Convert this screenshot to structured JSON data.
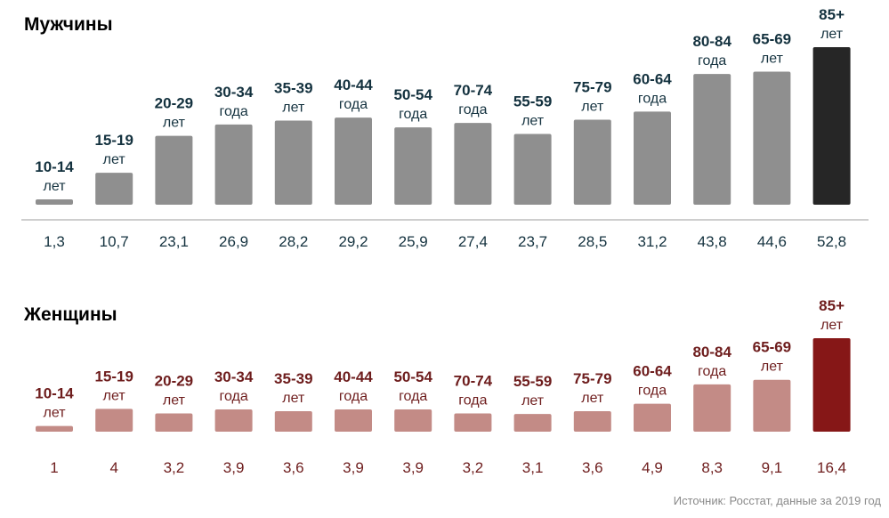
{
  "chart_data": [
    {
      "type": "bar",
      "title": "Мужчины",
      "categories": [
        "10-14",
        "15-19",
        "20-29",
        "30-34",
        "35-39",
        "40-44",
        "50-54",
        "70-74",
        "55-59",
        "75-79",
        "60-64",
        "80-84",
        "65-69",
        "85+"
      ],
      "category_units": [
        "лет",
        "лет",
        "лет",
        "года",
        "лет",
        "года",
        "года",
        "года",
        "лет",
        "лет",
        "года",
        "года",
        "лет",
        "лет"
      ],
      "values": [
        1.3,
        10.7,
        23.1,
        26.9,
        28.2,
        29.2,
        25.9,
        27.4,
        23.7,
        28.5,
        31.2,
        43.8,
        44.6,
        52.8
      ],
      "value_labels": [
        "1,3",
        "10,7",
        "23,1",
        "26,9",
        "28,2",
        "29,2",
        "25,9",
        "27,4",
        "23,7",
        "28,5",
        "31,2",
        "43,8",
        "44,6",
        "52,8"
      ],
      "ylim": [
        0,
        52.8
      ],
      "colors": {
        "title": "#1f1f1f",
        "text": "#14323f",
        "bar": "#8f8f8f",
        "highlight": "#262626",
        "axis": "#bdbdbd"
      }
    },
    {
      "type": "bar",
      "title": "Женщины",
      "categories": [
        "10-14",
        "15-19",
        "20-29",
        "30-34",
        "35-39",
        "40-44",
        "50-54",
        "70-74",
        "55-59",
        "75-79",
        "60-64",
        "80-84",
        "65-69",
        "85+"
      ],
      "category_units": [
        "лет",
        "лет",
        "лет",
        "года",
        "лет",
        "года",
        "года",
        "года",
        "лет",
        "лет",
        "года",
        "года",
        "лет",
        "лет"
      ],
      "values": [
        1,
        4,
        3.2,
        3.9,
        3.6,
        3.9,
        3.9,
        3.2,
        3.1,
        3.6,
        4.9,
        8.3,
        9.1,
        16.4
      ],
      "value_labels": [
        "1",
        "4",
        "3,2",
        "3,9",
        "3,6",
        "3,9",
        "3,9",
        "3,2",
        "3,1",
        "3,6",
        "4,9",
        "8,3",
        "9,1",
        "16,4"
      ],
      "ylim": [
        0,
        16.4
      ],
      "colors": {
        "title": "#7a1c1c",
        "text": "#6e1d1d",
        "bar": "#c38b86",
        "highlight": "#861717",
        "axis": "#bdbdbd"
      }
    }
  ],
  "source": "Источник: Росстат, данные за 2019 год"
}
